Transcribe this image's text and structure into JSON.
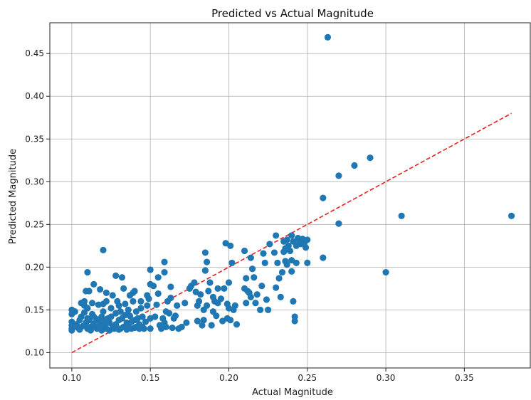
{
  "chart_data": {
    "type": "scatter",
    "title": "Predicted vs Actual Magnitude",
    "xlabel": "Actual Magnitude",
    "ylabel": "Predicted Magnitude",
    "xlim": [
      0.086,
      0.392
    ],
    "ylim": [
      0.082,
      0.486
    ],
    "x_ticks": [
      0.1,
      0.15,
      0.2,
      0.25,
      0.3,
      0.35
    ],
    "x_tick_labels": [
      "0.10",
      "0.15",
      "0.20",
      "0.25",
      "0.30",
      "0.35"
    ],
    "y_ticks": [
      0.1,
      0.15,
      0.2,
      0.25,
      0.3,
      0.35,
      0.4,
      0.45
    ],
    "y_tick_labels": [
      "0.10",
      "0.15",
      "0.20",
      "0.25",
      "0.30",
      "0.35",
      "0.40",
      "0.45"
    ],
    "grid": true,
    "colors": {
      "points": "#1f77b4",
      "reference_line": "#e8221f",
      "grid": "#b0b0b0"
    },
    "reference_line": {
      "style": "dashed",
      "x": [
        0.1,
        0.38
      ],
      "y": [
        0.1,
        0.38
      ]
    },
    "series": [
      {
        "values": [
          [
            0.1,
            0.15
          ],
          [
            0.1,
            0.145
          ],
          [
            0.1,
            0.136
          ],
          [
            0.1,
            0.132
          ],
          [
            0.1,
            0.128
          ],
          [
            0.1,
            0.126
          ],
          [
            0.102,
            0.148
          ],
          [
            0.103,
            0.133
          ],
          [
            0.104,
            0.129
          ],
          [
            0.105,
            0.138
          ],
          [
            0.105,
            0.127
          ],
          [
            0.106,
            0.158
          ],
          [
            0.106,
            0.142
          ],
          [
            0.107,
            0.131
          ],
          [
            0.108,
            0.155
          ],
          [
            0.108,
            0.16
          ],
          [
            0.108,
            0.147
          ],
          [
            0.109,
            0.172
          ],
          [
            0.109,
            0.135
          ],
          [
            0.11,
            0.194
          ],
          [
            0.11,
            0.152
          ],
          [
            0.11,
            0.14
          ],
          [
            0.11,
            0.128
          ],
          [
            0.111,
            0.172
          ],
          [
            0.111,
            0.138
          ],
          [
            0.112,
            0.13
          ],
          [
            0.112,
            0.126
          ],
          [
            0.113,
            0.158
          ],
          [
            0.113,
            0.145
          ],
          [
            0.114,
            0.18
          ],
          [
            0.114,
            0.142
          ],
          [
            0.114,
            0.134
          ],
          [
            0.115,
            0.13
          ],
          [
            0.116,
            0.128
          ],
          [
            0.116,
            0.139
          ],
          [
            0.117,
            0.156
          ],
          [
            0.117,
            0.138
          ],
          [
            0.118,
            0.174
          ],
          [
            0.118,
            0.133
          ],
          [
            0.119,
            0.126
          ],
          [
            0.119,
            0.142
          ],
          [
            0.12,
            0.22
          ],
          [
            0.12,
            0.157
          ],
          [
            0.12,
            0.148
          ],
          [
            0.121,
            0.137
          ],
          [
            0.121,
            0.131
          ],
          [
            0.122,
            0.16
          ],
          [
            0.122,
            0.17
          ],
          [
            0.122,
            0.128
          ],
          [
            0.123,
            0.14
          ],
          [
            0.124,
            0.135
          ],
          [
            0.124,
            0.126
          ],
          [
            0.125,
            0.152
          ],
          [
            0.125,
            0.142
          ],
          [
            0.126,
            0.167
          ],
          [
            0.126,
            0.13
          ],
          [
            0.127,
            0.128
          ],
          [
            0.128,
            0.19
          ],
          [
            0.128,
            0.146
          ],
          [
            0.128,
            0.133
          ],
          [
            0.129,
            0.16
          ],
          [
            0.13,
            0.155
          ],
          [
            0.13,
            0.138
          ],
          [
            0.13,
            0.127
          ],
          [
            0.131,
            0.148
          ],
          [
            0.131,
            0.128
          ],
          [
            0.132,
            0.188
          ],
          [
            0.132,
            0.14
          ],
          [
            0.133,
            0.175
          ],
          [
            0.133,
            0.13
          ],
          [
            0.134,
            0.157
          ],
          [
            0.134,
            0.144
          ],
          [
            0.135,
            0.135
          ],
          [
            0.135,
            0.127
          ],
          [
            0.136,
            0.15
          ],
          [
            0.136,
            0.131
          ],
          [
            0.137,
            0.167
          ],
          [
            0.137,
            0.143
          ],
          [
            0.138,
            0.128
          ],
          [
            0.138,
            0.136
          ],
          [
            0.139,
            0.16
          ],
          [
            0.139,
            0.17
          ],
          [
            0.14,
            0.172
          ],
          [
            0.14,
            0.138
          ],
          [
            0.14,
            0.129
          ],
          [
            0.141,
            0.148
          ],
          [
            0.141,
            0.13
          ],
          [
            0.142,
            0.14
          ],
          [
            0.143,
            0.128
          ],
          [
            0.143,
            0.133
          ],
          [
            0.144,
            0.16
          ],
          [
            0.144,
            0.152
          ],
          [
            0.145,
            0.142
          ],
          [
            0.145,
            0.13
          ],
          [
            0.146,
            0.128
          ],
          [
            0.147,
            0.136
          ],
          [
            0.148,
            0.167
          ],
          [
            0.148,
            0.155
          ],
          [
            0.149,
            0.163
          ],
          [
            0.15,
            0.197
          ],
          [
            0.15,
            0.18
          ],
          [
            0.15,
            0.14
          ],
          [
            0.15,
            0.128
          ],
          [
            0.152,
            0.178
          ],
          [
            0.153,
            0.142
          ],
          [
            0.154,
            0.156
          ],
          [
            0.155,
            0.188
          ],
          [
            0.155,
            0.169
          ],
          [
            0.156,
            0.132
          ],
          [
            0.157,
            0.128
          ],
          [
            0.158,
            0.14
          ],
          [
            0.159,
            0.206
          ],
          [
            0.159,
            0.194
          ],
          [
            0.159,
            0.135
          ],
          [
            0.16,
            0.148
          ],
          [
            0.16,
            0.13
          ],
          [
            0.161,
            0.16
          ],
          [
            0.162,
            0.146
          ],
          [
            0.163,
            0.177
          ],
          [
            0.163,
            0.164
          ],
          [
            0.164,
            0.129
          ],
          [
            0.165,
            0.14
          ],
          [
            0.166,
            0.143
          ],
          [
            0.167,
            0.155
          ],
          [
            0.168,
            0.128
          ],
          [
            0.17,
            0.13
          ],
          [
            0.172,
            0.158
          ],
          [
            0.173,
            0.135
          ],
          [
            0.175,
            0.175
          ],
          [
            0.176,
            0.178
          ],
          [
            0.178,
            0.182
          ],
          [
            0.179,
            0.171
          ],
          [
            0.18,
            0.155
          ],
          [
            0.18,
            0.137
          ],
          [
            0.181,
            0.16
          ],
          [
            0.182,
            0.168
          ],
          [
            0.183,
            0.132
          ],
          [
            0.184,
            0.138
          ],
          [
            0.184,
            0.15
          ],
          [
            0.185,
            0.217
          ],
          [
            0.185,
            0.196
          ],
          [
            0.186,
            0.206
          ],
          [
            0.186,
            0.155
          ],
          [
            0.187,
            0.172
          ],
          [
            0.188,
            0.182
          ],
          [
            0.189,
            0.132
          ],
          [
            0.19,
            0.165
          ],
          [
            0.19,
            0.148
          ],
          [
            0.191,
            0.16
          ],
          [
            0.192,
            0.143
          ],
          [
            0.193,
            0.175
          ],
          [
            0.193,
            0.158
          ],
          [
            0.195,
            0.163
          ],
          [
            0.196,
            0.137
          ],
          [
            0.197,
            0.175
          ],
          [
            0.198,
            0.228
          ],
          [
            0.199,
            0.14
          ],
          [
            0.199,
            0.157
          ],
          [
            0.2,
            0.182
          ],
          [
            0.2,
            0.152
          ],
          [
            0.201,
            0.225
          ],
          [
            0.201,
            0.138
          ],
          [
            0.202,
            0.205
          ],
          [
            0.203,
            0.15
          ],
          [
            0.204,
            0.155
          ],
          [
            0.205,
            0.133
          ],
          [
            0.21,
            0.219
          ],
          [
            0.21,
            0.175
          ],
          [
            0.211,
            0.158
          ],
          [
            0.211,
            0.187
          ],
          [
            0.212,
            0.172
          ],
          [
            0.213,
            0.17
          ],
          [
            0.214,
            0.211
          ],
          [
            0.214,
            0.165
          ],
          [
            0.215,
            0.198
          ],
          [
            0.216,
            0.188
          ],
          [
            0.217,
            0.158
          ],
          [
            0.218,
            0.168
          ],
          [
            0.22,
            0.15
          ],
          [
            0.221,
            0.178
          ],
          [
            0.222,
            0.216
          ],
          [
            0.223,
            0.205
          ],
          [
            0.224,
            0.162
          ],
          [
            0.225,
            0.15
          ],
          [
            0.226,
            0.227
          ],
          [
            0.229,
            0.217
          ],
          [
            0.23,
            0.237
          ],
          [
            0.23,
            0.176
          ],
          [
            0.231,
            0.205
          ],
          [
            0.232,
            0.187
          ],
          [
            0.233,
            0.165
          ],
          [
            0.234,
            0.194
          ],
          [
            0.235,
            0.23
          ],
          [
            0.235,
            0.218
          ],
          [
            0.236,
            0.222
          ],
          [
            0.236,
            0.207
          ],
          [
            0.237,
            0.232
          ],
          [
            0.237,
            0.203
          ],
          [
            0.238,
            0.225
          ],
          [
            0.239,
            0.219
          ],
          [
            0.24,
            0.237
          ],
          [
            0.24,
            0.208
          ],
          [
            0.24,
            0.195
          ],
          [
            0.241,
            0.23
          ],
          [
            0.241,
            0.16
          ],
          [
            0.242,
            0.142
          ],
          [
            0.242,
            0.137
          ],
          [
            0.243,
            0.225
          ],
          [
            0.243,
            0.205
          ],
          [
            0.244,
            0.234
          ],
          [
            0.245,
            0.23
          ],
          [
            0.246,
            0.227
          ],
          [
            0.247,
            0.233
          ],
          [
            0.248,
            0.228
          ],
          [
            0.249,
            0.223
          ],
          [
            0.25,
            0.205
          ],
          [
            0.25,
            0.232
          ],
          [
            0.26,
            0.281
          ],
          [
            0.26,
            0.211
          ],
          [
            0.263,
            0.469
          ],
          [
            0.27,
            0.307
          ],
          [
            0.27,
            0.251
          ],
          [
            0.28,
            0.319
          ],
          [
            0.29,
            0.328
          ],
          [
            0.3,
            0.194
          ],
          [
            0.31,
            0.26
          ],
          [
            0.38,
            0.26
          ]
        ]
      }
    ]
  }
}
